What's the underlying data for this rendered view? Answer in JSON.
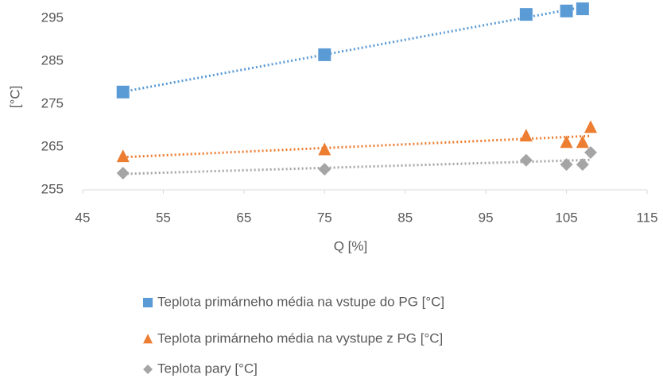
{
  "chart_data": {
    "type": "scatter",
    "x_label": "Q [%]",
    "y_label": "[°C]",
    "xlim": [
      45,
      115
    ],
    "xticks": [
      45,
      55,
      65,
      75,
      85,
      95,
      105,
      115
    ],
    "ylim": [
      255,
      299
    ],
    "yticks": [
      255,
      265,
      275,
      285,
      295
    ],
    "trendline": "linear",
    "series": [
      {
        "name": "Teplota primárneho média na vstupe do PG [°C]",
        "color": "#5b9bd5",
        "marker": "square",
        "x": [
          50,
          75,
          100,
          105,
          107
        ],
        "values": [
          277.8,
          286.5,
          295.9,
          296.7,
          297.2
        ]
      },
      {
        "name": "Teplota primárneho média na vystupe z PG [°C]",
        "color": "#ed7d31",
        "marker": "triangle",
        "x": [
          50,
          75,
          100,
          105,
          107,
          108
        ],
        "values": [
          262.8,
          264.4,
          267.6,
          266.1,
          266.1,
          269.6
        ]
      },
      {
        "name": "Teplota pary [°C]",
        "color": "#a5a5a5",
        "marker": "diamond",
        "x": [
          50,
          75,
          100,
          105,
          107,
          108
        ],
        "values": [
          258.9,
          259.8,
          261.9,
          260.9,
          260.9,
          263.7
        ]
      }
    ]
  }
}
